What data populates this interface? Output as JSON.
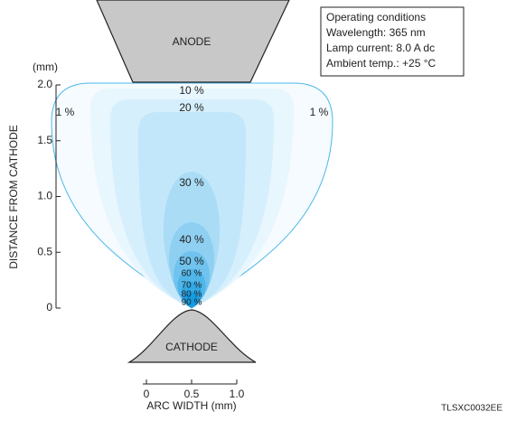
{
  "chart_data": {
    "type": "contour",
    "y_unit": "(mm)",
    "ylabel": "DISTANCE FROM CATHODE",
    "xlabel": "ARC WIDTH (mm)",
    "xlim": [
      0,
      1
    ],
    "ylim": [
      0,
      2
    ],
    "xticks": [
      0,
      0.5,
      {
        "value": 1,
        "label": "1.0"
      }
    ],
    "yticks": [
      0,
      0.5,
      {
        "value": 1,
        "label": "1.0"
      },
      1.5,
      {
        "value": 2,
        "label": "2.0"
      }
    ],
    "levels": [
      1,
      10,
      20,
      30,
      40,
      50,
      60,
      70,
      80,
      90
    ],
    "value_labels": [
      "1 %",
      "10 %",
      "20 %",
      "30 %",
      "40 %",
      "50 %",
      "60 %",
      "70 %",
      "80 %",
      "90 %"
    ],
    "colors": [
      "#f5fbff",
      "#e8f6fe",
      "#d6effc",
      "#c3e7fa",
      "#aadcf6",
      "#8fd0f2",
      "#6fc3ee",
      "#50b6ea",
      "#31a9e6",
      "#139ce3"
    ],
    "anode_label": "ANODE",
    "cathode_label": "CATHODE",
    "conditions": [
      "Operating conditions",
      "Wavelength: 365 nm",
      "Lamp current: 8.0 A dc",
      "Ambient temp.: +25 °C"
    ],
    "code": "TLSXC0032EE"
  }
}
